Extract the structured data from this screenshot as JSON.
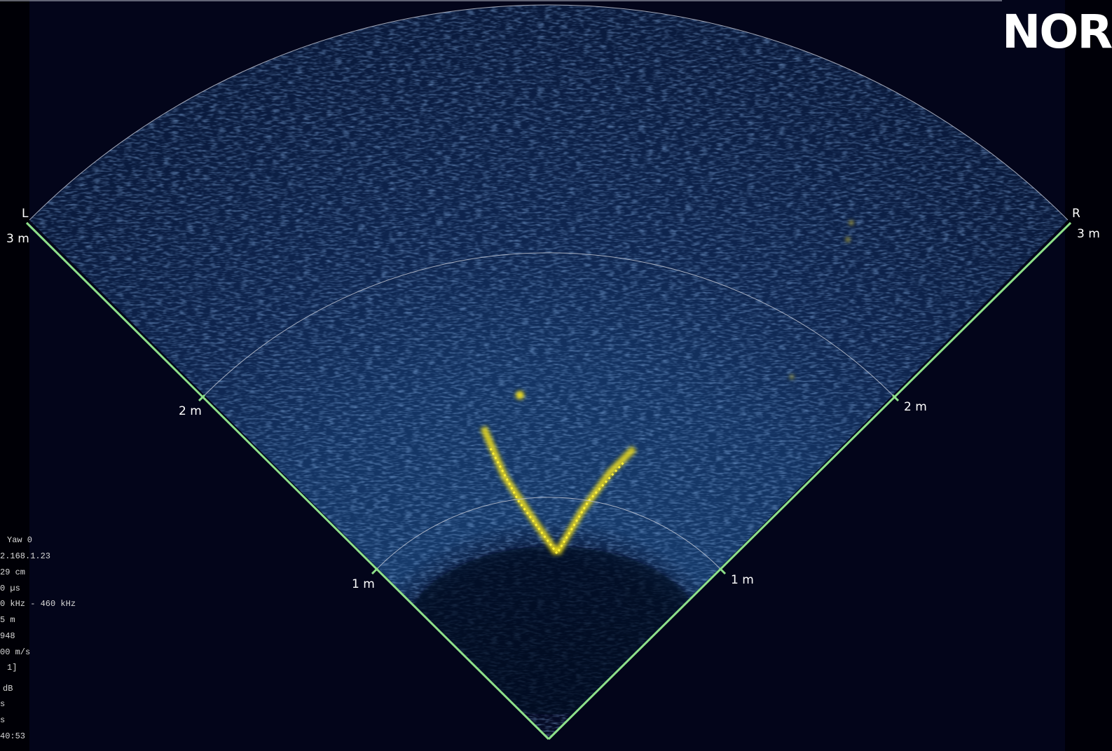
{
  "header": {
    "logo": "NOR"
  },
  "sector": {
    "side_labels": [
      "L",
      "R"
    ],
    "range_labels_left": [
      "1 m",
      "2 m",
      "3 m"
    ],
    "range_labels_right": [
      "1 m",
      "2 m",
      "3 m"
    ]
  },
  "info": {
    "lines": [
      "Yaw 0",
      "2.168.1.23",
      "29 cm",
      "0 µs",
      "0 kHz - 460 kHz",
      "5 m",
      "948",
      "00 m/s",
      "1]",
      "dB",
      "s",
      "s",
      "40:53"
    ]
  }
}
